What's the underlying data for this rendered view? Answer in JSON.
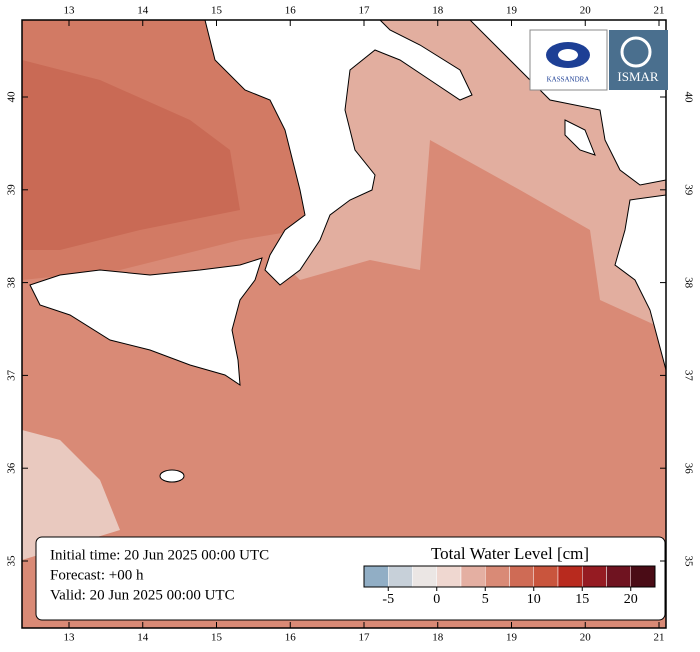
{
  "map": {
    "lon_ticks": [
      13,
      14,
      15,
      16,
      17,
      18,
      19,
      20,
      21
    ],
    "lat_ticks": [
      35,
      36,
      37,
      38,
      39,
      40
    ],
    "info": [
      "Initial time: 20 Jun 2025 00:00 UTC",
      "Forecast: +00 h",
      "Valid: 20 Jun 2025 00:00 UTC"
    ],
    "logos": [
      "KASSANDRA",
      "ISMAR"
    ],
    "colorbar": {
      "title": "Total Water Level [cm]",
      "bounds": [
        -7.5,
        -5,
        -2.5,
        0,
        2.5,
        5,
        7.5,
        10,
        12.5,
        15,
        17.5,
        20,
        22.5
      ],
      "colors": [
        "#91aec5",
        "#c7d0d9",
        "#ebe6e4",
        "#efd7d0",
        "#e4afa2",
        "#d98a76",
        "#cf6b55",
        "#c9553d",
        "#b82a1e",
        "#951b22",
        "#6f1320",
        "#4a0c16"
      ],
      "ticks": [
        -5,
        0,
        5,
        10,
        15,
        20
      ]
    }
  }
}
